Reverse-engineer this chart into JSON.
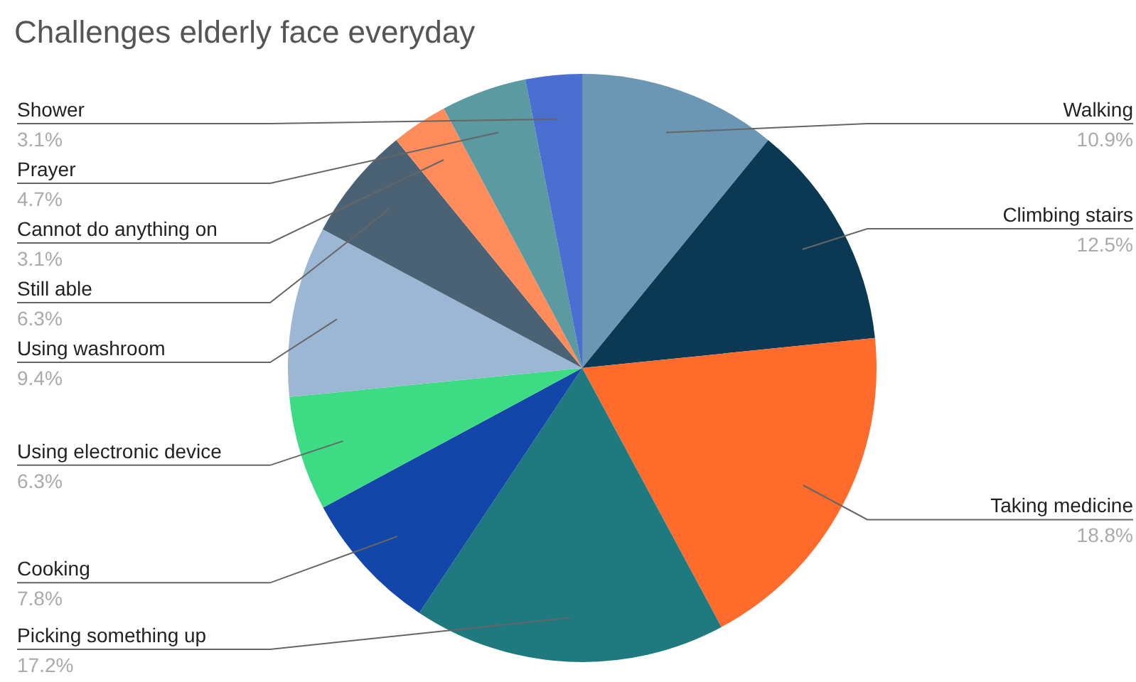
{
  "chart_data": {
    "type": "pie",
    "title": "Challenges elderly face everyday",
    "categories": [
      "Walking",
      "Climbing stairs",
      "Taking medicine",
      "Picking something up",
      "Cooking",
      "Using electronic device",
      "Using washroom",
      "Still able",
      "Cannot do anything on",
      "Prayer",
      "Shower"
    ],
    "values": [
      10.9,
      12.5,
      18.8,
      17.2,
      7.8,
      6.3,
      9.4,
      6.3,
      3.1,
      4.7,
      3.1
    ],
    "colors": [
      "#6b97b4",
      "#0b3954",
      "#ff6b2b",
      "#1f7a80",
      "#1246a8",
      "#3ddc84",
      "#9bb7d4",
      "#4a6274",
      "#ff8c5a",
      "#5b9aa0",
      "#4a6fd0"
    ],
    "value_labels": [
      "10.9%",
      "12.5%",
      "18.8%",
      "17.2%",
      "7.8%",
      "6.3%",
      "9.4%",
      "6.3%",
      "3.1%",
      "4.7%",
      "3.1%"
    ],
    "legend": false
  }
}
